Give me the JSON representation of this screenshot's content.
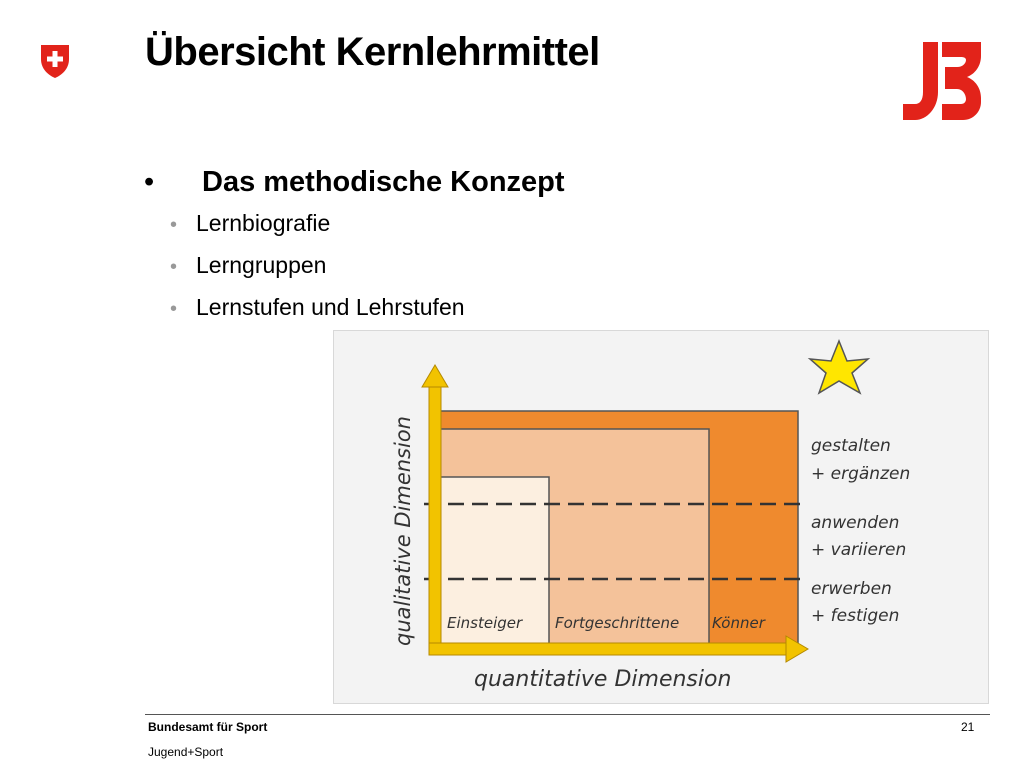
{
  "header": {
    "title": "Übersicht Kernlehrmittel",
    "swiss_logo_icon": "swiss-cross-shield-icon",
    "js_logo_icon": "jugend-sport-logo-icon",
    "js_logo_color": "#e2231a"
  },
  "bullets": {
    "main": "Das methodische Konzept",
    "sub": [
      "Lernbiografie",
      "Lerngruppen",
      "Lernstufen und Lehrstufen"
    ]
  },
  "diagram": {
    "y_axis_label": "qualitative Dimension",
    "x_axis_label": "quantitative Dimension",
    "columns": [
      "Einsteiger",
      "Fortgeschrittene",
      "Könner"
    ],
    "levels": [
      [
        "gestalten",
        "+ ergänzen"
      ],
      [
        "anwenden",
        "+ variieren"
      ],
      [
        "erwerben",
        "+ festigen"
      ]
    ],
    "colors": {
      "axis": "#f2c300",
      "einsteiger": "#fcefe0",
      "fortgeschrittene": "#f4c29a",
      "koenner": "#ef8a2e",
      "star": "#ffe600"
    },
    "star_icon": "star-icon"
  },
  "footer": {
    "org": "Bundesamt für Sport",
    "sub": "Jugend+Sport",
    "page": "21"
  }
}
